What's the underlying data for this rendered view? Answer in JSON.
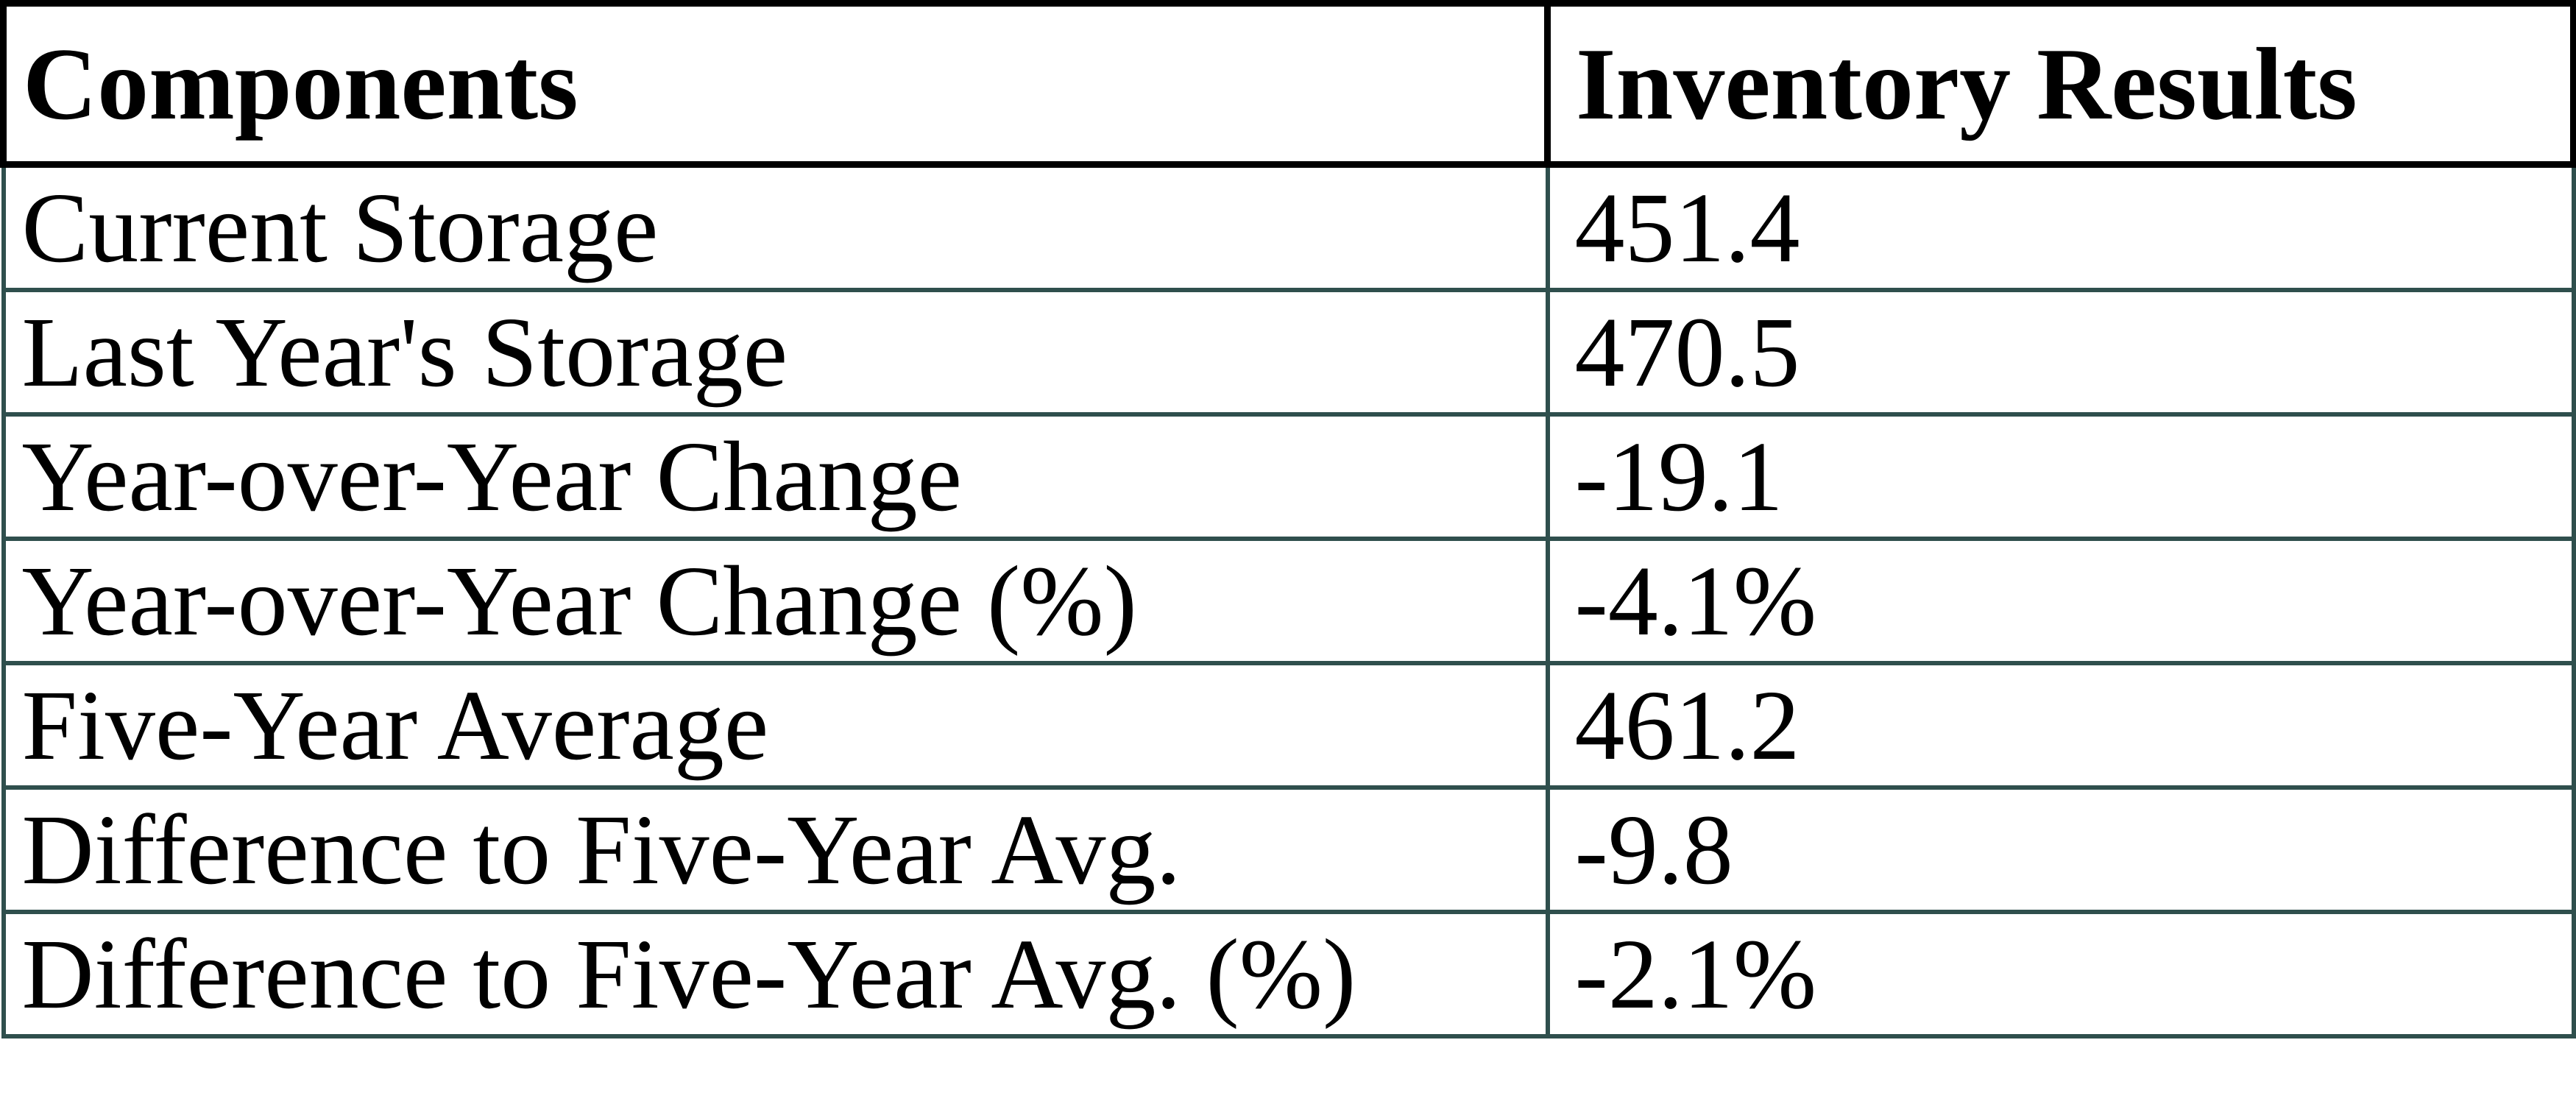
{
  "chart_data": {
    "type": "table",
    "columns": [
      "Components",
      "Inventory Results"
    ],
    "rows": [
      [
        "Current Storage",
        "451.4"
      ],
      [
        "Last Year's Storage",
        "470.5"
      ],
      [
        "Year-over-Year Change",
        "-19.1"
      ],
      [
        "Year-over-Year Change (%)",
        "-4.1%"
      ],
      [
        "Five-Year Average",
        "461.2"
      ],
      [
        "Difference to Five-Year Avg.",
        "-9.8"
      ],
      [
        "Difference to Five-Year Avg. (%)",
        "-2.1%"
      ]
    ],
    "layout": {
      "header_row_bold": true,
      "grid": "full-borders",
      "header_border_color": "#000000",
      "body_border_color": "#2f4f4d",
      "text_color": "#000000",
      "background_color": "#ffffff"
    }
  }
}
